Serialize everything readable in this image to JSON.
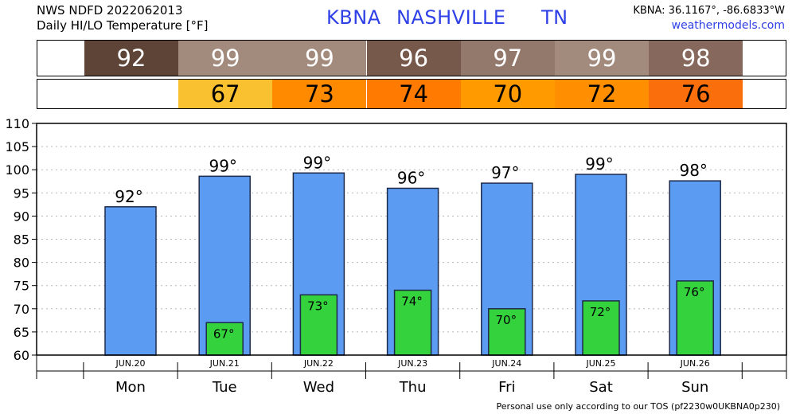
{
  "header": {
    "line1": "NWS NDFD 2022062013",
    "line2": "Daily HI/LO Temperature [°F]",
    "station": "KBNA",
    "city": "NASHVILLE",
    "state": "TN",
    "coords": "KBNA: 36.1167°, -86.6833°W",
    "site": "weathermodels.com"
  },
  "footer": "Personal use only according to our TOS (pf2230w0UKBNA0p230)",
  "colors": {
    "hi_bar": "#5b9cf2",
    "lo_bar": "#34d23c",
    "hi_cells": [
      "#5e4436",
      "#a28a7d",
      "#a28a7d",
      "#76594b",
      "#93796c",
      "#a28a7d",
      "#86695c"
    ],
    "lo_cells": [
      "#ffffff",
      "#f9c12f",
      "#ff8a00",
      "#ff7a00",
      "#ff9a00",
      "#ff8f00",
      "#fb6e0c"
    ]
  },
  "chart_data": {
    "type": "bar",
    "categories": [
      "Mon",
      "Tue",
      "Wed",
      "Thu",
      "Fri",
      "Sat",
      "Sun"
    ],
    "dates": [
      "JUN.20",
      "JUN.21",
      "JUN.22",
      "JUN.23",
      "JUN.24",
      "JUN.25",
      "JUN.26"
    ],
    "series": [
      {
        "values": [
          92,
          99,
          99,
          96,
          97,
          99,
          98
        ]
      },
      {
        "values": [
          null,
          67,
          73,
          74,
          70,
          72,
          76
        ]
      }
    ],
    "hi_labels": [
      "92",
      "99",
      "99",
      "96",
      "97",
      "99",
      "98"
    ],
    "lo_labels": [
      "",
      "67",
      "73",
      "74",
      "70",
      "72",
      "76"
    ],
    "hi_bar_tops": [
      92,
      98.6,
      99.3,
      96,
      97.1,
      99,
      97.6
    ],
    "lo_bar_tops": [
      null,
      67,
      73,
      74,
      70,
      71.7,
      76
    ],
    "ylim": [
      60,
      110
    ],
    "yticks": [
      60,
      65,
      70,
      75,
      80,
      85,
      90,
      95,
      100,
      105,
      110
    ],
    "grid": true
  }
}
